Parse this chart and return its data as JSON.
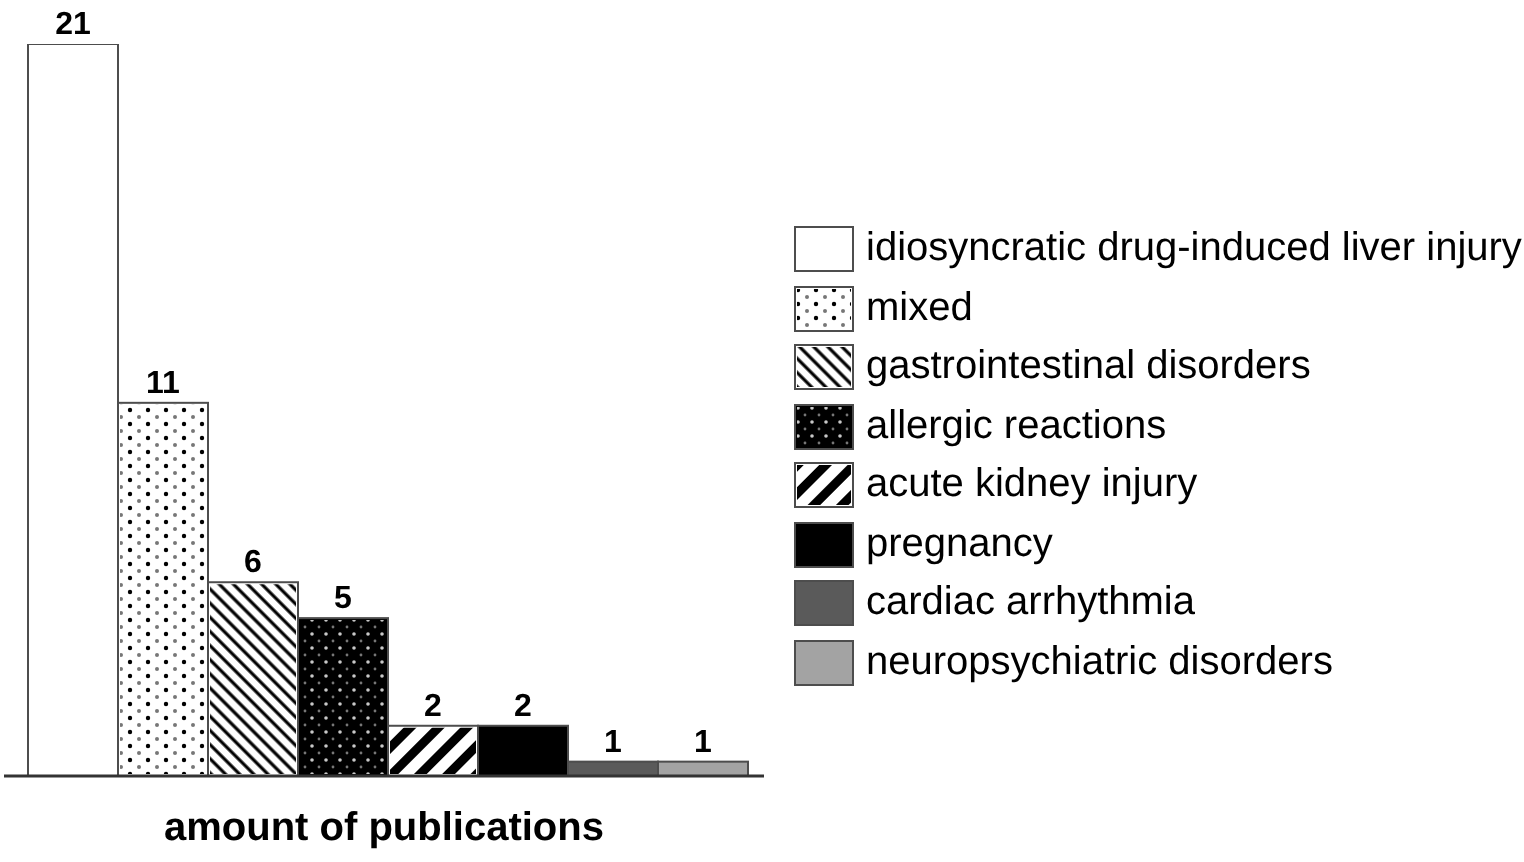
{
  "chart_data": {
    "type": "bar",
    "xlabel": "amount of publications",
    "categories": [
      null
    ],
    "series": [
      {
        "name": "idiosyncratic drug-induced liver injury",
        "color": "#ffffff",
        "values": [
          21
        ]
      },
      {
        "name": "mixed",
        "color": "#ffffff",
        "values": [
          11
        ]
      },
      {
        "name": "gastrointestinal disorders",
        "color": "#ffffff",
        "values": [
          6
        ]
      },
      {
        "name": "allergic reactions",
        "color": "#000000",
        "values": [
          5
        ]
      },
      {
        "name": "acute kidney injury",
        "color": "#ffffff",
        "values": [
          2
        ]
      },
      {
        "name": "pregnancy",
        "color": "#000000",
        "values": [
          2
        ]
      },
      {
        "name": "cardiac arrhythmia",
        "color": "#5a5a5a",
        "values": [
          1
        ]
      },
      {
        "name": "neuropsychiatric disorders",
        "color": "#a3a3a3",
        "values": [
          1
        ]
      }
    ],
    "ylim": [
      0.6,
      21
    ],
    "data_labels": true,
    "legend": "right",
    "tick_labels": false
  }
}
